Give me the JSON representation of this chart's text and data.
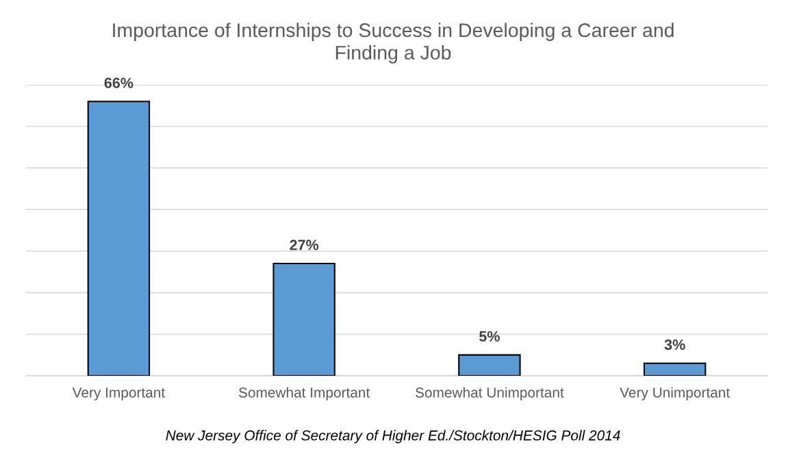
{
  "chart_data": {
    "type": "bar",
    "title": "Importance of Internships to Success in Developing a Career and\nFinding a Job",
    "categories": [
      "Very Important",
      "Somewhat Important",
      "Somewhat Unimportant",
      "Very Unimportant"
    ],
    "values": [
      66,
      27,
      5,
      3
    ],
    "value_labels": [
      "66%",
      "27%",
      "5%",
      "3%"
    ],
    "color": "#5b9bd5",
    "ylim": [
      0,
      70
    ],
    "yticks": [
      {
        "value": 0,
        "label": null
      },
      {
        "value": 10,
        "label": null
      },
      {
        "value": 20,
        "label": null
      },
      {
        "value": 30,
        "label": null
      },
      {
        "value": 40,
        "label": null
      },
      {
        "value": 50,
        "label": null
      },
      {
        "value": 60,
        "label": null
      },
      {
        "value": 70,
        "label": null
      }
    ],
    "grid": "y",
    "tick_labels": "x",
    "annotations": [
      "New Jersey Office of Secretary of Higher Ed./Stockton/HESIG Poll 2014"
    ]
  }
}
